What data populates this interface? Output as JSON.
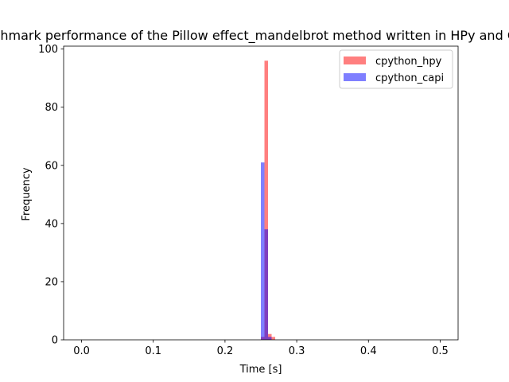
{
  "chart_data": {
    "type": "bar",
    "subtype": "histogram",
    "title": "Benchmark performance of the Pillow effect_mandelbrot method written in HPy and C API",
    "xlabel": "Time [s]",
    "ylabel": "Frequency",
    "xlim": [
      -0.025,
      0.525
    ],
    "ylim": [
      0,
      101
    ],
    "xticks": [
      0.0,
      0.1,
      0.2,
      0.3,
      0.4,
      0.5
    ],
    "xtick_labels": [
      "0.0",
      "0.1",
      "0.2",
      "0.3",
      "0.4",
      "0.5"
    ],
    "yticks": [
      0,
      20,
      40,
      60,
      80,
      100
    ],
    "ytick_labels": [
      "0",
      "20",
      "40",
      "60",
      "80",
      "100"
    ],
    "bin_edges": [
      0.25,
      0.255,
      0.26,
      0.265,
      0.27,
      0.275
    ],
    "series": [
      {
        "name": "cpython_hpy",
        "color": "#ff0000",
        "alpha": 0.5,
        "values": [
          1,
          96,
          2,
          1,
          0
        ]
      },
      {
        "name": "cpython_capi",
        "color": "#0000ff",
        "alpha": 0.5,
        "values": [
          61,
          38,
          1,
          0,
          0
        ]
      }
    ],
    "legend_position": "top-right",
    "grid": false
  }
}
